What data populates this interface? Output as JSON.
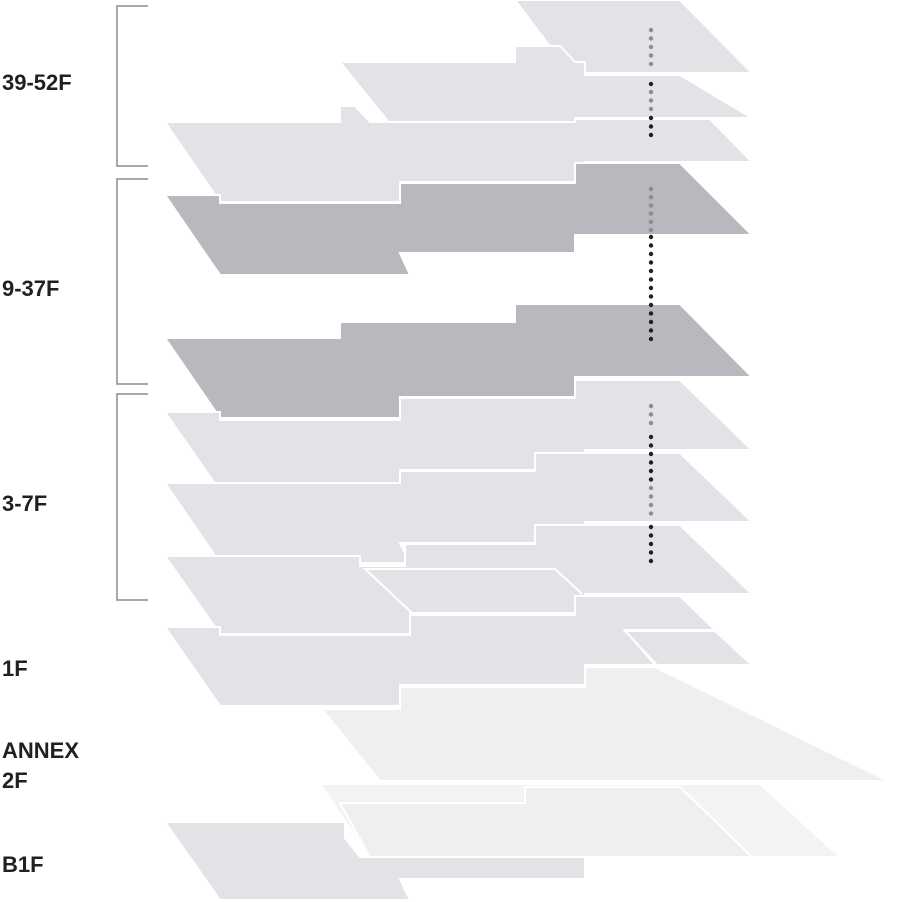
{
  "floor_groups": [
    {
      "id": "39-52",
      "label": "39-52F"
    },
    {
      "id": "9-37",
      "label": "9-37F"
    },
    {
      "id": "3-7",
      "label": "3-7F"
    },
    {
      "id": "1",
      "label": "1F"
    },
    {
      "id": "annex-2",
      "label_line1": "ANNEX",
      "label_line2": "2F"
    },
    {
      "id": "b1",
      "label": "B1F"
    }
  ],
  "colors": {
    "light_plate": "#e1e3e6",
    "dark_plate": "#b7b9bf",
    "annex_plate": "#efefef",
    "annex_plate_2": "#f3f3f3",
    "plate_edge": "#ffffff",
    "bracket": "#8c8c8c",
    "dot_grey": "#8d8d8d",
    "dot_black": "#231f20",
    "label": "#231f20"
  }
}
